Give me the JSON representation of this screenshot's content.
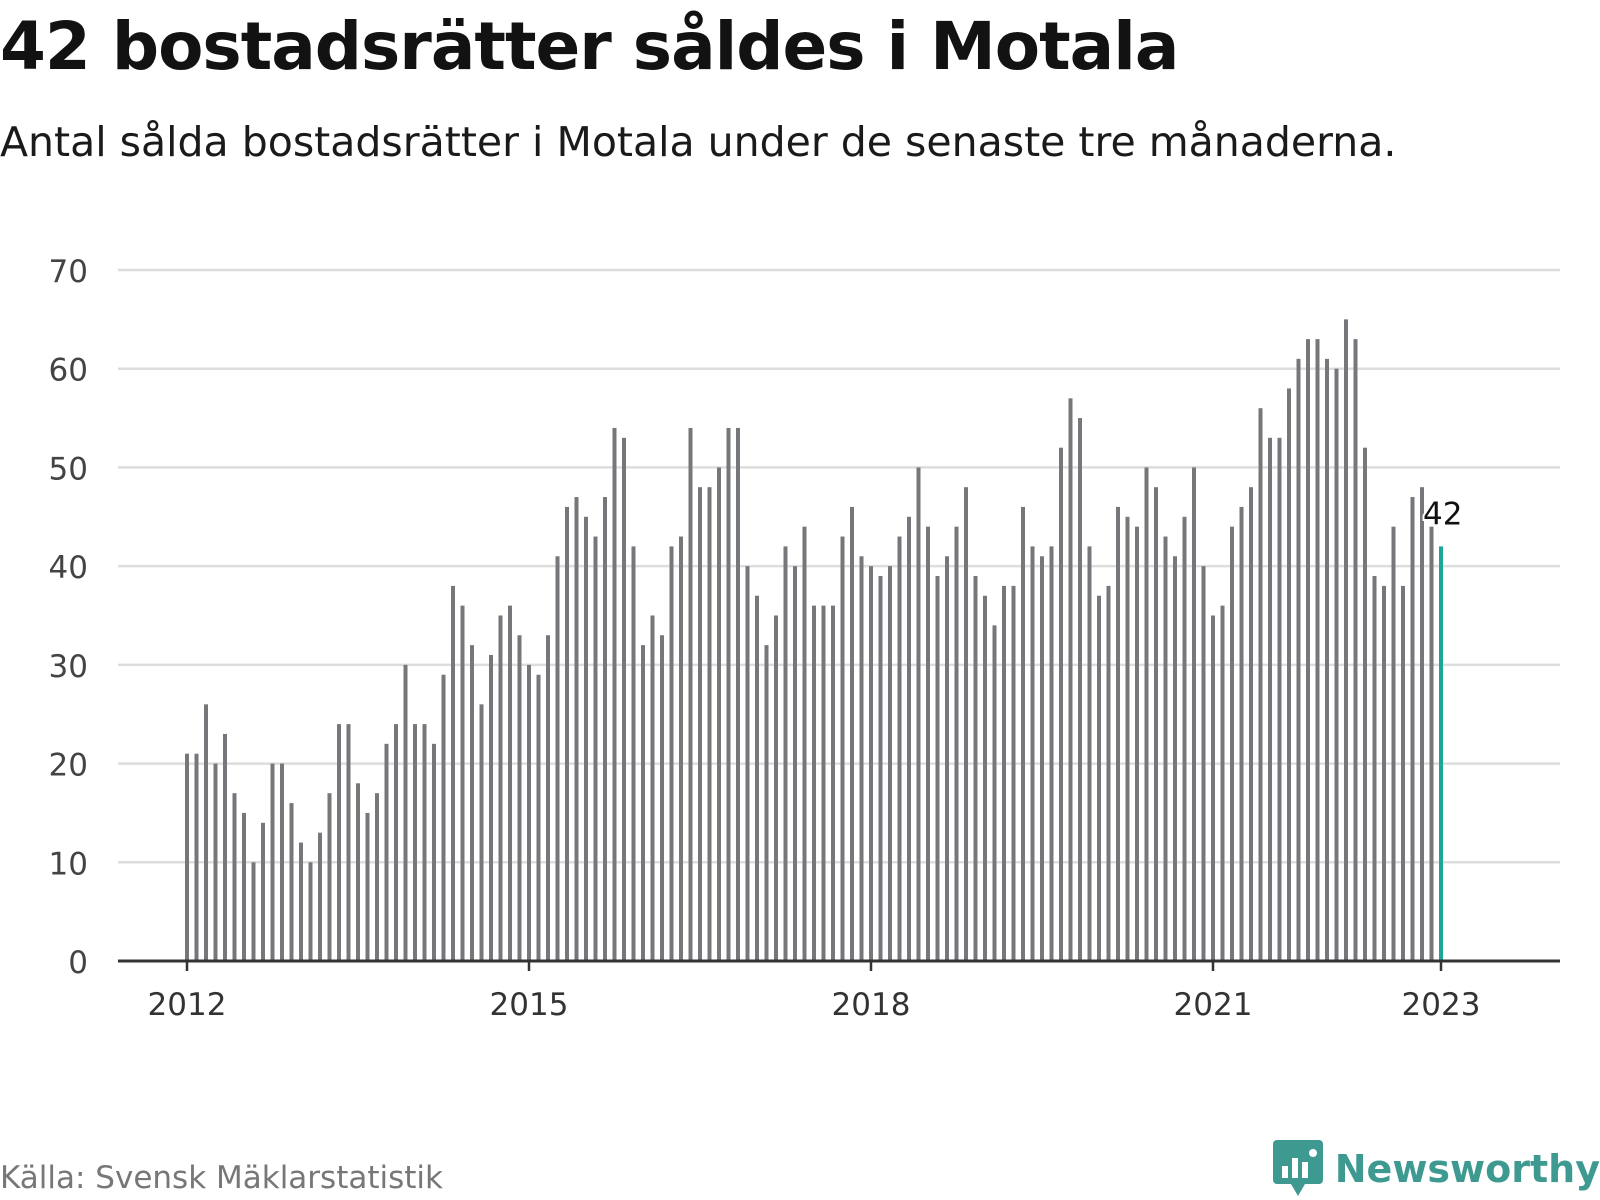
{
  "header": {
    "title": "42 bostadsrätter såldes i Motala",
    "subtitle": "Antal sålda bostadsrätter i Motala under de senaste tre månaderna."
  },
  "footer": {
    "source": "Källa: Svensk Mäklarstatistik",
    "brand": "Newsworthy",
    "brand_icon": "newsworthy-logo-icon"
  },
  "colors": {
    "bar": "#76767b",
    "highlight": "#1ba698",
    "grid": "#dddddd",
    "axis": "#333333",
    "brand": "#3e9a90"
  },
  "chart_data": {
    "type": "bar",
    "start": "2012-01",
    "x_ticks": [
      "2012",
      "2015",
      "2018",
      "2021",
      "2023"
    ],
    "y_ticks": [
      "0",
      "10",
      "20",
      "30",
      "40",
      "50",
      "60",
      "70"
    ],
    "ylim": [
      0,
      70
    ],
    "grid": true,
    "values": [
      21,
      21,
      26,
      20,
      23,
      17,
      15,
      10,
      14,
      20,
      20,
      16,
      12,
      10,
      13,
      17,
      24,
      24,
      18,
      15,
      17,
      22,
      24,
      30,
      24,
      24,
      22,
      29,
      38,
      36,
      32,
      26,
      31,
      35,
      36,
      33,
      30,
      29,
      33,
      41,
      46,
      47,
      45,
      43,
      47,
      54,
      53,
      42,
      32,
      35,
      33,
      42,
      43,
      54,
      48,
      48,
      50,
      54,
      54,
      40,
      37,
      32,
      35,
      42,
      40,
      44,
      36,
      36,
      36,
      43,
      46,
      41,
      40,
      39,
      40,
      43,
      45,
      50,
      44,
      39,
      41,
      44,
      48,
      39,
      37,
      34,
      38,
      38,
      46,
      42,
      41,
      42,
      52,
      57,
      55,
      42,
      37,
      38,
      46,
      45,
      44,
      50,
      48,
      43,
      41,
      45,
      50,
      40,
      35,
      36,
      44,
      46,
      48,
      56,
      53,
      53,
      58,
      61,
      63,
      63,
      61,
      60,
      65,
      63,
      52,
      39,
      38,
      44,
      38,
      47,
      48,
      44,
      42
    ],
    "highlight_last": true,
    "last_label": "42"
  }
}
